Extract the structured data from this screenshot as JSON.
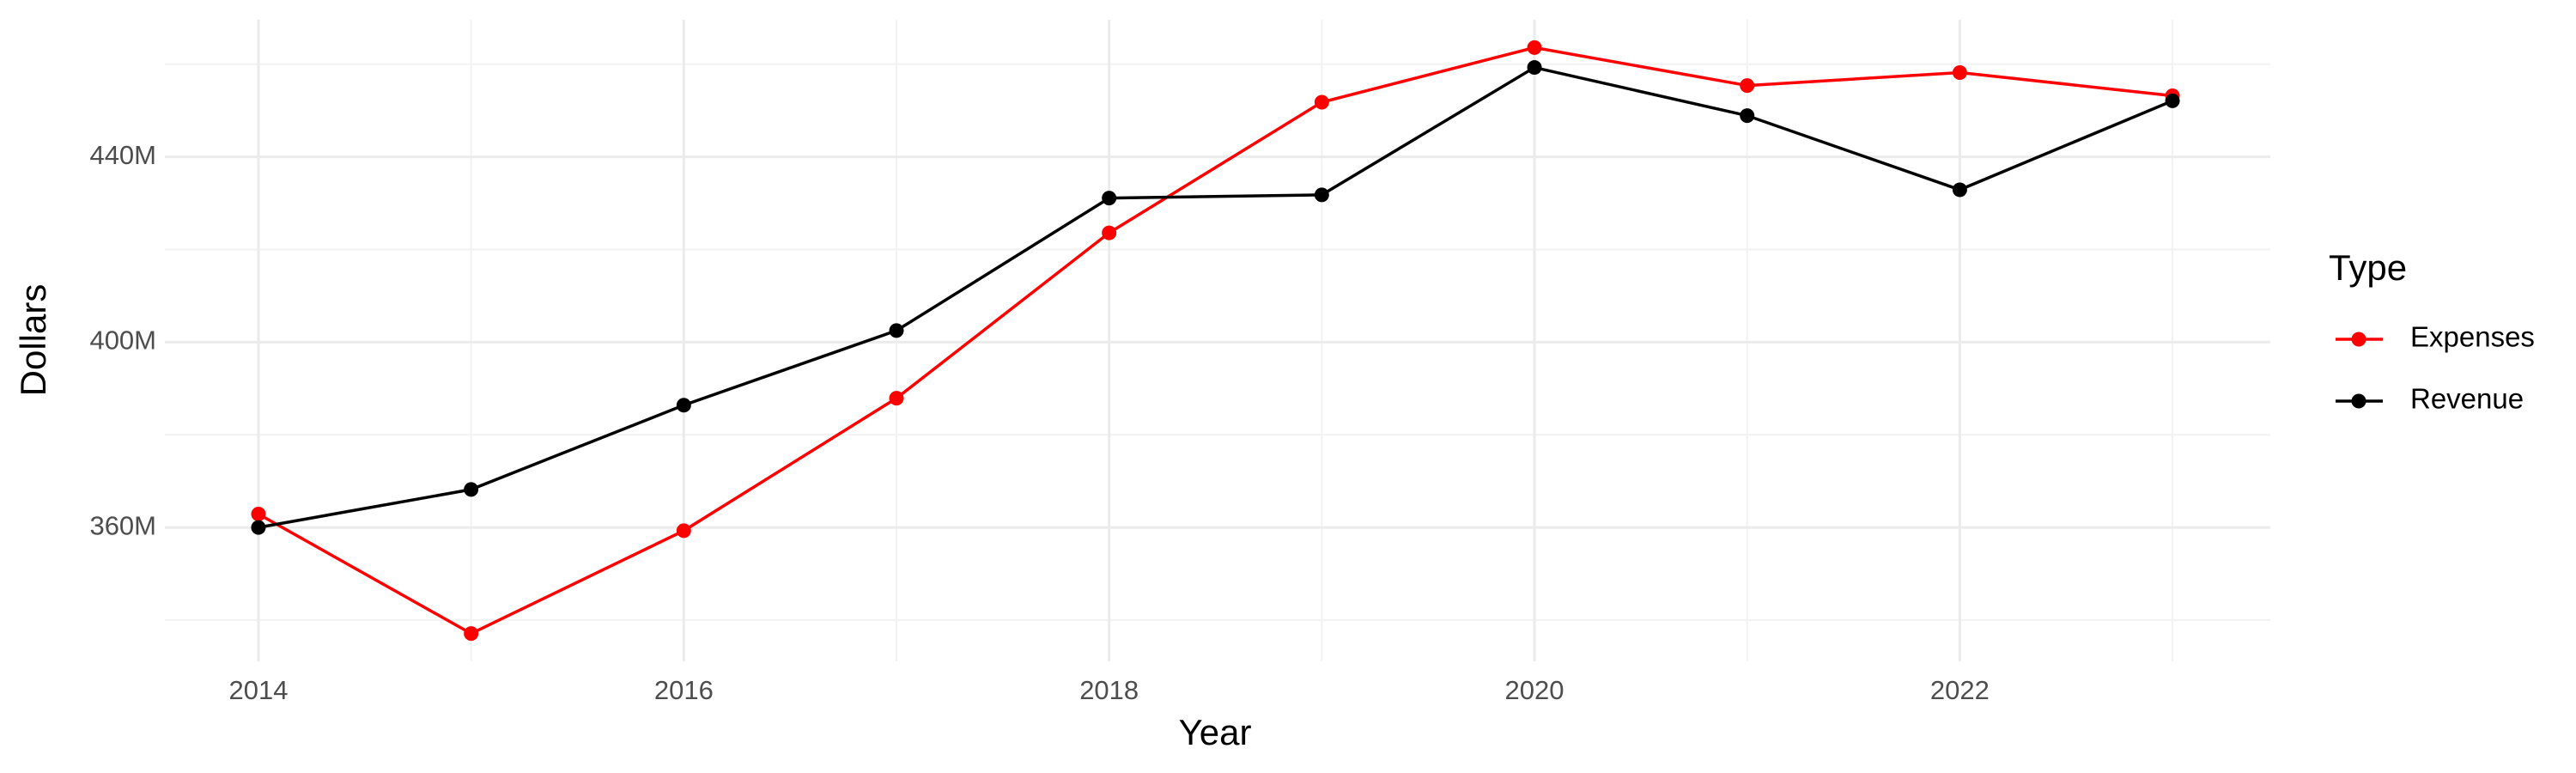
{
  "chart_data": {
    "type": "line",
    "x_label": "Year",
    "y_label": "Dollars",
    "legend_title": "Type",
    "x": [
      2014,
      2015,
      2016,
      2017,
      2018,
      2019,
      2020,
      2021,
      2022,
      2023
    ],
    "series": [
      {
        "name": "Expenses",
        "color": "#ff0000",
        "values": [
          362.9,
          337.1,
          359.3,
          387.9,
          423.6,
          451.8,
          463.6,
          455.4,
          458.2,
          453.2
        ]
      },
      {
        "name": "Revenue",
        "color": "#000000",
        "values": [
          360,
          368.2,
          386.4,
          402.5,
          431.1,
          431.8,
          459.3,
          448.9,
          432.9,
          452.1
        ]
      }
    ],
    "xlim": [
      2013.56,
      2023.46
    ],
    "xticks": [
      2014,
      2016,
      2018,
      2020,
      2022
    ],
    "ylim": [
      331.1,
      469.6
    ],
    "yticks": [
      {
        "value": 360,
        "label": "360M"
      },
      {
        "value": 400,
        "label": "400M"
      },
      {
        "value": 440,
        "label": "440M"
      }
    ],
    "grid": true,
    "legend_position": "right"
  }
}
